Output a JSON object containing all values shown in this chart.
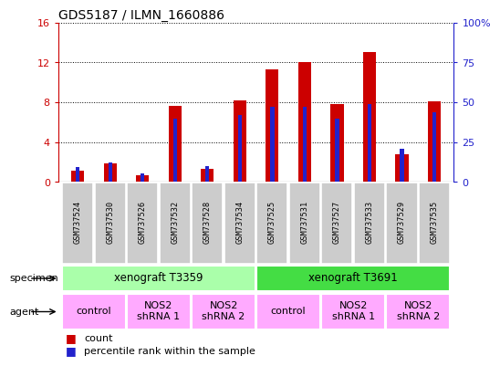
{
  "title": "GDS5187 / ILMN_1660886",
  "samples": [
    "GSM737524",
    "GSM737530",
    "GSM737526",
    "GSM737532",
    "GSM737528",
    "GSM737534",
    "GSM737525",
    "GSM737531",
    "GSM737527",
    "GSM737533",
    "GSM737529",
    "GSM737535"
  ],
  "counts": [
    1.1,
    1.9,
    0.7,
    7.6,
    1.3,
    8.2,
    11.3,
    12.0,
    7.8,
    13.0,
    2.8,
    8.1
  ],
  "percentiles": [
    9.5,
    12.5,
    5.5,
    40.0,
    10.0,
    42.0,
    47.0,
    47.0,
    40.0,
    49.0,
    21.0,
    44.0
  ],
  "ylim_left": [
    0,
    16
  ],
  "ylim_right": [
    0,
    100
  ],
  "yticks_left": [
    0,
    4,
    8,
    12,
    16
  ],
  "yticks_right": [
    0,
    25,
    50,
    75,
    100
  ],
  "red_bar_width": 0.4,
  "blue_bar_width": 0.12,
  "count_color": "#cc0000",
  "percentile_color": "#2222cc",
  "specimen_groups": [
    {
      "label": "xenograft T3359",
      "start": 0,
      "end": 5,
      "color": "#aaffaa"
    },
    {
      "label": "xenograft T3691",
      "start": 6,
      "end": 11,
      "color": "#44dd44"
    }
  ],
  "agent_groups": [
    {
      "label": "control",
      "start": 0,
      "end": 1,
      "color": "#ffaaff"
    },
    {
      "label": "NOS2\nshRNA 1",
      "start": 2,
      "end": 3,
      "color": "#ffaaff"
    },
    {
      "label": "NOS2\nshRNA 2",
      "start": 4,
      "end": 5,
      "color": "#ffaaff"
    },
    {
      "label": "control",
      "start": 6,
      "end": 7,
      "color": "#ffaaff"
    },
    {
      "label": "NOS2\nshRNA 1",
      "start": 8,
      "end": 9,
      "color": "#ffaaff"
    },
    {
      "label": "NOS2\nshRNA 2",
      "start": 10,
      "end": 11,
      "color": "#ffaaff"
    }
  ],
  "tick_bg_color": "#cccccc",
  "legend_count_label": "count",
  "legend_percentile_label": "percentile rank within the sample",
  "bg_color": "#ffffff"
}
